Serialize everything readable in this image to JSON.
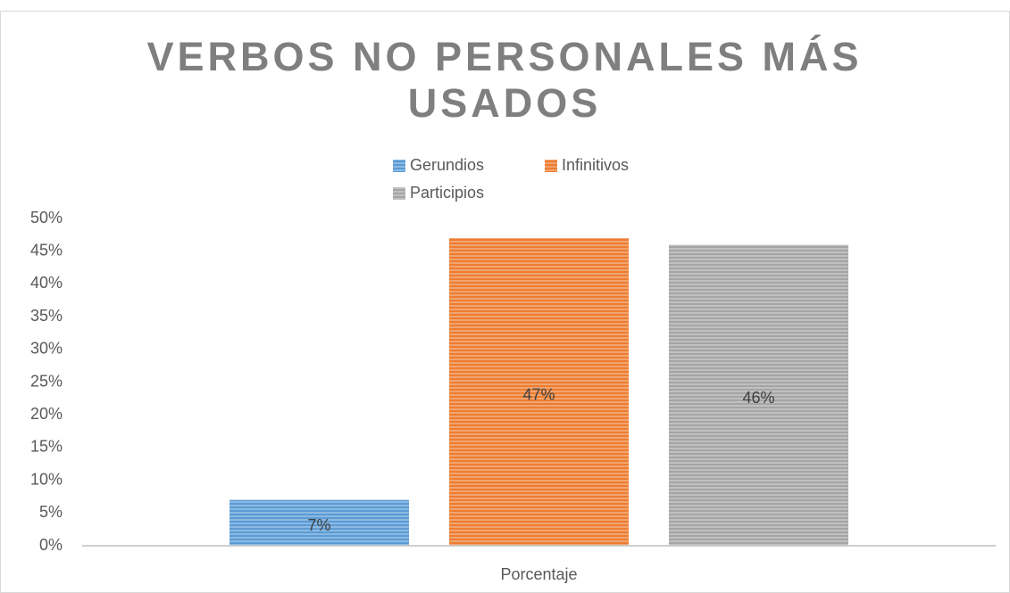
{
  "chart_data": {
    "type": "bar",
    "title": "VERBOS NO PERSONALES MÁS USADOS",
    "categories": [
      "Porcentaje"
    ],
    "series": [
      {
        "name": "Gerundios",
        "color": "#5b9bd5",
        "values": [
          7
        ],
        "value_labels": [
          "7%"
        ]
      },
      {
        "name": "Infinitivos",
        "color": "#ed7d31",
        "values": [
          47
        ],
        "value_labels": [
          "47%"
        ]
      },
      {
        "name": "Participios",
        "color": "#a5a5a5",
        "values": [
          46
        ],
        "value_labels": [
          "46%"
        ]
      }
    ],
    "ylim": [
      0,
      50
    ],
    "yticks": [
      {
        "value": 0,
        "label": "0%"
      },
      {
        "value": 5,
        "label": "5%"
      },
      {
        "value": 10,
        "label": "10%"
      },
      {
        "value": 15,
        "label": "15%"
      },
      {
        "value": 20,
        "label": "20%"
      },
      {
        "value": 25,
        "label": "25%"
      },
      {
        "value": 30,
        "label": "30%"
      },
      {
        "value": 35,
        "label": "35%"
      },
      {
        "value": 40,
        "label": "40%"
      },
      {
        "value": 45,
        "label": "45%"
      },
      {
        "value": 50,
        "label": "50%"
      }
    ],
    "grid": false,
    "legend": "top"
  }
}
